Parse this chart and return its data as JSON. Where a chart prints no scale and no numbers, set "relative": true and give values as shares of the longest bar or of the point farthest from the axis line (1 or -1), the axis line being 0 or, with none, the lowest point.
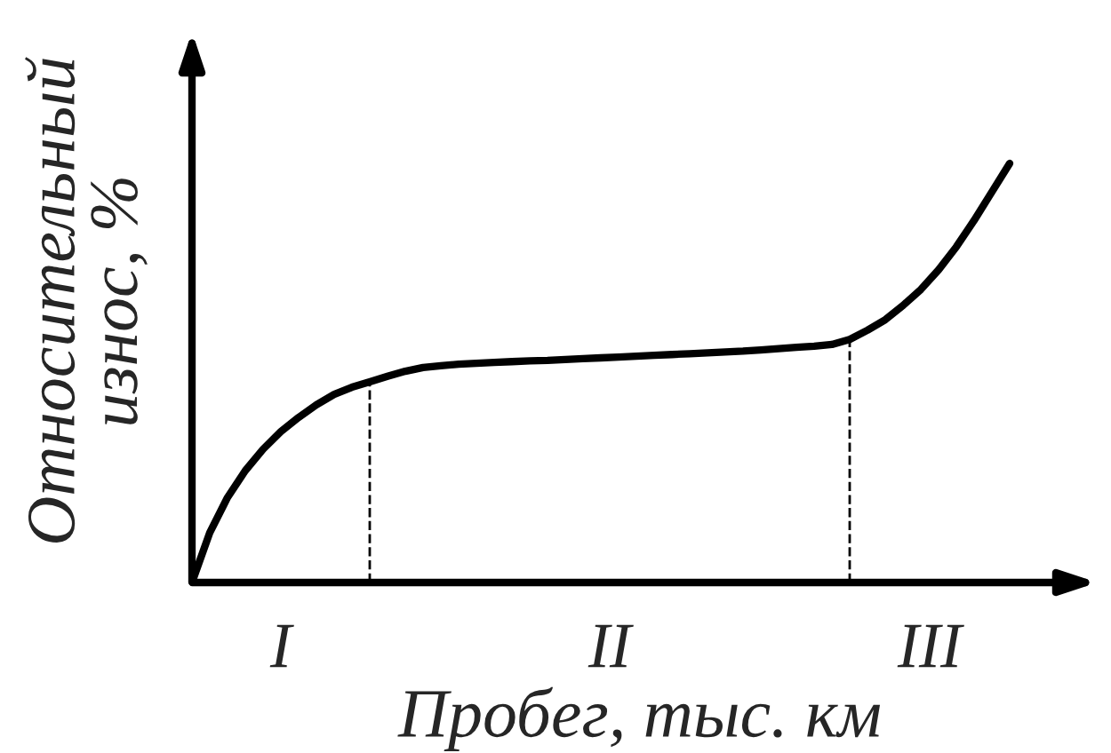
{
  "chart_data": {
    "type": "line",
    "relative": true,
    "xlabel": "Пробег, тыс. км",
    "ylabel": "Относительный\nизнос, %",
    "categories": [
      null,
      null,
      null,
      null,
      null,
      null,
      null,
      null,
      null,
      null,
      null,
      null,
      null,
      null,
      null,
      null,
      null,
      null,
      null,
      null,
      null,
      null,
      null,
      null,
      null,
      null,
      null,
      null,
      null,
      null,
      null,
      null,
      null,
      null,
      null,
      null,
      null,
      null,
      null,
      null,
      null,
      null,
      null,
      null,
      null,
      null,
      null
    ],
    "series": [
      {
        "color": "#000000",
        "values": [
          0,
          0.119,
          0.203,
          0.267,
          0.318,
          0.36,
          0.394,
          0.424,
          0.449,
          0.466,
          0.479,
          0.492,
          0.504,
          0.513,
          0.517,
          0.521,
          0.523,
          0.525,
          0.527,
          0.529,
          0.53,
          0.532,
          0.534,
          0.536,
          0.538,
          0.54,
          0.542,
          0.544,
          0.546,
          0.548,
          0.55,
          0.552,
          0.555,
          0.558,
          0.561,
          0.564,
          0.568,
          0.58,
          0.602,
          0.627,
          0.661,
          0.699,
          0.746,
          0.801,
          0.864,
          0.932,
          1.0
        ]
      }
    ],
    "annotations": [
      "I",
      "II",
      "III"
    ],
    "marker": "none",
    "line_style": "solid"
  }
}
